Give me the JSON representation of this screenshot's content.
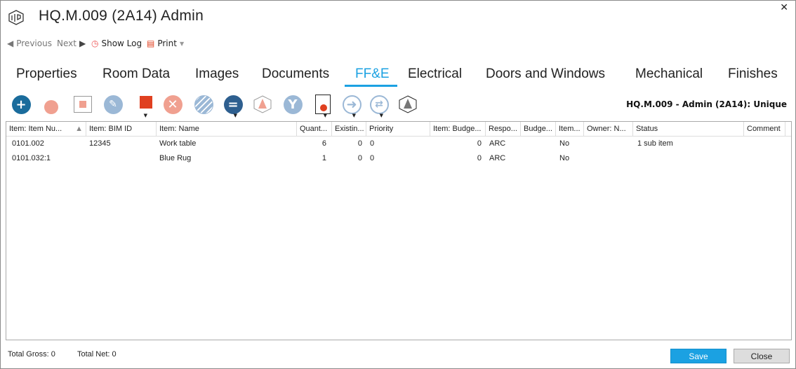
{
  "window": {
    "title": "HQ.M.009 (2A14) Admin",
    "close": "✕"
  },
  "nav": {
    "previous": "Previous",
    "next": "Next",
    "show_log": "Show Log",
    "print": "Print"
  },
  "tabs": [
    {
      "label": "Properties"
    },
    {
      "label": "Room Data"
    },
    {
      "label": "Images"
    },
    {
      "label": "Documents"
    },
    {
      "label": "FF&E",
      "active": true
    },
    {
      "label": "Electrical"
    },
    {
      "label": "Doors and Windows"
    },
    {
      "label": "Mechanical"
    },
    {
      "label": "Finishes"
    }
  ],
  "toolbar": {
    "icons": [
      "add-icon",
      "add-type-icon",
      "box-icon",
      "edit-icon",
      "place-instance-icon",
      "delete-icon",
      "hatch-icon",
      "equals-icon",
      "cone-icon",
      "merge-icon",
      "document-icon",
      "arrow-right-icon",
      "swap-icon",
      "cube-cone-icon"
    ],
    "context": "HQ.M.009 - Admin (2A14): Unique"
  },
  "grid": {
    "columns": [
      "Item: Item Nu...",
      "Item: BIM ID",
      "Item: Name",
      "Quant...",
      "Existin...",
      "Priority",
      "Item: Budge...",
      "Respo...",
      "Budge...",
      "Item...",
      "Owner: N...",
      "Status",
      "Comment"
    ],
    "sort_column": 0,
    "rows": [
      {
        "num": "0101.002",
        "bim": "12345",
        "name": "Work table",
        "qty": "6",
        "existing": "0",
        "priority": "0",
        "budget": "0",
        "resp": "ARC",
        "budge2": "",
        "item": "No",
        "owner": "",
        "status": "1 sub item",
        "comment": ""
      },
      {
        "num": "0101.032:1",
        "bim": "",
        "name": "Blue Rug",
        "qty": "1",
        "existing": "0",
        "priority": "0",
        "budget": "0",
        "resp": "ARC",
        "budge2": "",
        "item": "No",
        "owner": "",
        "status": "",
        "comment": ""
      }
    ]
  },
  "footer": {
    "total_gross": "Total Gross: 0",
    "total_net": "Total Net: 0",
    "save": "Save",
    "close": "Close"
  },
  "colors": {
    "accent": "#1ba1e2"
  }
}
